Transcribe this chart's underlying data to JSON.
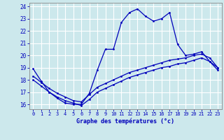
{
  "xlabel": "Graphe des températures (°c)",
  "bg_color": "#cce8ec",
  "line_color": "#0000bb",
  "grid_color": "#ffffff",
  "xmin": -0.5,
  "xmax": 23.5,
  "ymin": 15.6,
  "ymax": 24.3,
  "yticks": [
    16,
    17,
    18,
    19,
    20,
    21,
    22,
    23,
    24
  ],
  "xticks": [
    0,
    1,
    2,
    3,
    4,
    5,
    6,
    7,
    8,
    9,
    10,
    11,
    12,
    13,
    14,
    15,
    16,
    17,
    18,
    19,
    20,
    21,
    22,
    23
  ],
  "line1_x": [
    0,
    1,
    2,
    3,
    4,
    5,
    6,
    7,
    8,
    9,
    10,
    11,
    12,
    13,
    14,
    15,
    16,
    17,
    18,
    19,
    20,
    21,
    22,
    23
  ],
  "line1_y": [
    18.9,
    17.9,
    17.0,
    16.5,
    16.1,
    16.0,
    16.0,
    16.9,
    18.8,
    20.5,
    20.5,
    22.7,
    23.5,
    23.8,
    23.2,
    22.8,
    23.0,
    23.5,
    20.9,
    20.0,
    20.1,
    20.3,
    19.5,
    19.0
  ],
  "line2_x": [
    0,
    1,
    2,
    3,
    4,
    5,
    6,
    7,
    8,
    9,
    10,
    11,
    12,
    13,
    14,
    15,
    16,
    17,
    18,
    19,
    20,
    21,
    22,
    23
  ],
  "line2_y": [
    18.3,
    17.8,
    17.3,
    16.9,
    16.6,
    16.3,
    16.2,
    16.8,
    17.4,
    17.7,
    18.0,
    18.3,
    18.6,
    18.8,
    19.0,
    19.2,
    19.4,
    19.6,
    19.7,
    19.8,
    20.0,
    20.1,
    19.8,
    19.0
  ],
  "line3_x": [
    0,
    1,
    2,
    3,
    4,
    5,
    6,
    7,
    8,
    9,
    10,
    11,
    12,
    13,
    14,
    15,
    16,
    17,
    18,
    19,
    20,
    21,
    22,
    23
  ],
  "line3_y": [
    18.0,
    17.5,
    17.0,
    16.6,
    16.3,
    16.1,
    15.9,
    16.4,
    17.0,
    17.3,
    17.6,
    17.9,
    18.2,
    18.4,
    18.6,
    18.8,
    19.0,
    19.1,
    19.3,
    19.4,
    19.6,
    19.8,
    19.5,
    18.8
  ]
}
